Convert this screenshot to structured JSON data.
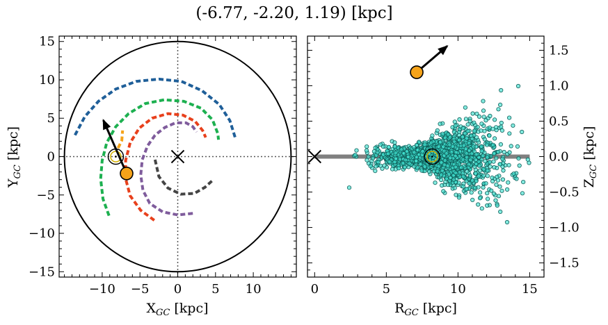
{
  "figure": {
    "title": "(-6.77, -2.20, 1.19) [kpc]"
  },
  "chart_data": [
    {
      "type": "line",
      "panel": "left",
      "xlabel": "X",
      "xlabel_sub": "GC",
      "xlabel_unit": " [kpc]",
      "ylabel": "Y",
      "ylabel_sub": "GC",
      "ylabel_unit": " [kpc]",
      "xlim": [
        -15.7,
        15.7
      ],
      "ylim": [
        -15.7,
        15.7
      ],
      "xticks": [
        -10,
        -5,
        0,
        5,
        10
      ],
      "xtick_labels": [
        "−10",
        "−5",
        "0",
        "5",
        "10"
      ],
      "yticks": [
        -15,
        -10,
        -5,
        0,
        5,
        10,
        15
      ],
      "ytick_labels": [
        "−15",
        "−10",
        "−5",
        "0",
        "5",
        "10",
        "15"
      ],
      "boundary_circle_radius": 15,
      "galactic_center": [
        0,
        0
      ],
      "sun_position": [
        -8.2,
        0
      ],
      "star_position": [
        -6.77,
        -2.2
      ],
      "velocity_arrow_end": [
        -9.85,
        4.75
      ],
      "arms": [
        {
          "color": "#1f5f99",
          "points": [
            [
              -13.6,
              2.8
            ],
            [
              -12.3,
              5.2
            ],
            [
              -10.5,
              7.2
            ],
            [
              -8.2,
              8.8
            ],
            [
              -5.5,
              9.8
            ],
            [
              -2.5,
              10.1
            ],
            [
              0.5,
              9.8
            ],
            [
              3.2,
              8.6
            ],
            [
              5.5,
              6.8
            ],
            [
              6.9,
              4.7
            ],
            [
              7.6,
              2.5
            ]
          ],
          "dash": "7,4",
          "width": 4
        },
        {
          "color": "#1db050",
          "points": [
            [
              -9.1,
              -7.7
            ],
            [
              -9.9,
              -5.5
            ],
            [
              -10.2,
              -2.9
            ],
            [
              -10.0,
              -0.5
            ],
            [
              -9.4,
              1.8
            ],
            [
              -8.2,
              3.9
            ],
            [
              -6.5,
              5.6
            ],
            [
              -4.3,
              6.9
            ],
            [
              -1.8,
              7.4
            ],
            [
              0.8,
              7.2
            ],
            [
              3.1,
              6.3
            ],
            [
              4.6,
              4.8
            ],
            [
              5.3,
              3.0
            ],
            [
              5.4,
              2.2
            ]
          ],
          "dash": "7,4",
          "width": 4
        },
        {
          "color": "#e8401c",
          "points": [
            [
              -3.1,
              -8.3
            ],
            [
              -4.9,
              -7.0
            ],
            [
              -6.3,
              -5.1
            ],
            [
              -6.9,
              -2.9
            ],
            [
              -6.9,
              -0.5
            ],
            [
              -6.3,
              1.8
            ],
            [
              -5.1,
              3.7
            ],
            [
              -3.4,
              5.0
            ],
            [
              -1.3,
              5.6
            ],
            [
              0.7,
              5.4
            ],
            [
              2.3,
              4.6
            ],
            [
              3.3,
              3.4
            ],
            [
              3.7,
              2.5
            ]
          ],
          "dash": "7,4",
          "width": 4
        },
        {
          "color": "#7f5c9c",
          "points": [
            [
              2.0,
              -7.4
            ],
            [
              0.0,
              -7.6
            ],
            [
              -2.0,
              -7.2
            ],
            [
              -3.7,
              -6.1
            ],
            [
              -4.6,
              -4.4
            ],
            [
              -4.9,
              -2.4
            ],
            [
              -4.7,
              -0.4
            ],
            [
              -4.0,
              1.4
            ],
            [
              -3.0,
              2.8
            ],
            [
              -1.7,
              3.8
            ],
            [
              -0.3,
              4.4
            ],
            [
              1.1,
              4.4
            ],
            [
              2.0,
              3.9
            ],
            [
              2.5,
              3.2
            ]
          ],
          "dash": "7,4",
          "width": 4
        },
        {
          "color": "#444444",
          "points": [
            [
              -3.0,
              -0.4
            ],
            [
              -2.5,
              -2.6
            ],
            [
              -1.3,
              -4.1
            ],
            [
              0.4,
              -4.9
            ],
            [
              2.2,
              -4.8
            ],
            [
              3.6,
              -4.0
            ],
            [
              4.6,
              -3.1
            ]
          ],
          "dash": "7,4",
          "width": 4
        },
        {
          "color": "#f5a31a",
          "points": [
            [
              -7.9,
              1.1
            ],
            [
              -7.4,
              2.1
            ],
            [
              -7.3,
              3.4
            ]
          ],
          "dash": "7,4",
          "width": 4
        }
      ]
    },
    {
      "type": "scatter",
      "panel": "right",
      "xlabel": "R",
      "xlabel_sub": "GC",
      "xlabel_unit": " [kpc]",
      "ylabel": "Z",
      "ylabel_sub": "GC",
      "ylabel_unit": " [kpc]",
      "xlim": [
        -0.5,
        16
      ],
      "ylim": [
        -1.7,
        1.7
      ],
      "xticks": [
        0,
        5,
        10,
        15
      ],
      "xtick_labels": [
        "0",
        "5",
        "10",
        "15"
      ],
      "yticks": [
        -1.5,
        -1.0,
        -0.5,
        0.0,
        0.5,
        1.0,
        1.5
      ],
      "ytick_labels": [
        "−1.5",
        "−1.0",
        "−0.5",
        "0.0",
        "0.5",
        "1.0",
        "1.5"
      ],
      "point_color": "#40e0d0",
      "point_edge": "#0f5f5a",
      "disk_line": {
        "x": [
          0,
          15
        ],
        "y": 0,
        "color": "#808080"
      },
      "galactic_center": [
        0,
        0
      ],
      "sun_position": [
        8.2,
        0
      ],
      "star_position": [
        7.12,
        1.19
      ],
      "velocity_arrow_end": [
        9.25,
        1.56
      ],
      "cloud": {
        "n": 1700,
        "x_range": [
          1.5,
          15.7
        ],
        "z_range": [
          -1.6,
          1.2
        ],
        "peak_r": 8.8,
        "seed": 11
      }
    }
  ]
}
